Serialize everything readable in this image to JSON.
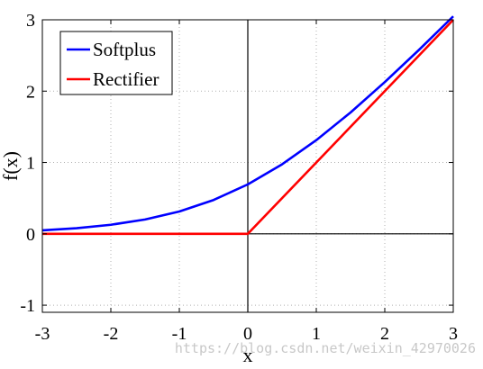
{
  "chart_data": {
    "type": "line",
    "xlabel": "x",
    "ylabel": "f(x)",
    "xlim": [
      -3,
      3
    ],
    "ylim": [
      -1.1,
      3
    ],
    "xticks": [
      -3,
      -2,
      -1,
      0,
      1,
      2,
      3
    ],
    "yticks": [
      -1,
      0,
      1,
      2,
      3
    ],
    "grid": true,
    "legend": "top-left",
    "series": [
      {
        "name": "Softplus",
        "color": "#0000ff",
        "x": [
          -3,
          -2.5,
          -2,
          -1.5,
          -1,
          -0.5,
          0,
          0.5,
          1,
          1.5,
          2,
          2.5,
          3
        ],
        "y": [
          0.049,
          0.079,
          0.127,
          0.201,
          0.313,
          0.474,
          0.693,
          0.974,
          1.313,
          1.701,
          2.127,
          2.579,
          3.049
        ]
      },
      {
        "name": "Rectifier",
        "color": "#ff0000",
        "x": [
          -3,
          0,
          3
        ],
        "y": [
          0,
          0,
          3
        ]
      }
    ]
  },
  "watermark": "https://blog.csdn.net/weixin_42970026"
}
